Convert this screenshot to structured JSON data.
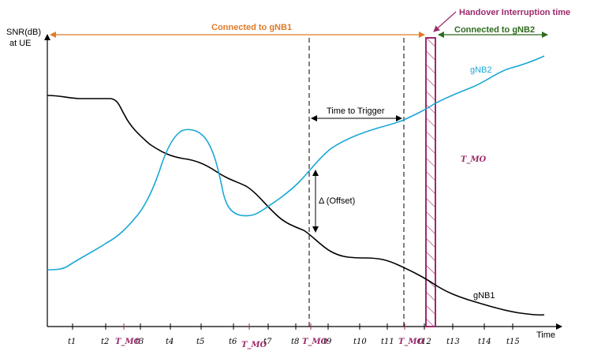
{
  "y_axis_label": [
    "SNR(dB)",
    "at UE"
  ],
  "x_axis_label": "Time",
  "connected_gnb1": "Connected to gNB1",
  "connected_gnb2": "Connected to gNB2",
  "handover_interruption": "Handover Interruption time",
  "gnb1_label": "gNB1",
  "gnb2_label": "gNB2",
  "time_to_trigger": "Time to Trigger",
  "offset_label": "Δ (Offset)",
  "tmo_floating": "T_MO",
  "time_ticks": [
    "t1",
    "t2",
    "t3",
    "t4",
    "t5",
    "t6",
    "t7",
    "t8",
    "t9",
    "t10",
    "t11",
    "t12",
    "t13",
    "t14",
    "t15"
  ],
  "tmo_ticks": [
    "T_MO",
    "T_MO",
    "T_MO",
    "T_MO"
  ],
  "colors": {
    "gnb1_curve": "#000000",
    "gnb2_curve": "#1aa7d6",
    "orange_arrow": "#e07b27",
    "green_arrow": "#2e6b1f",
    "handover_bar": "#9c2a6b"
  }
}
